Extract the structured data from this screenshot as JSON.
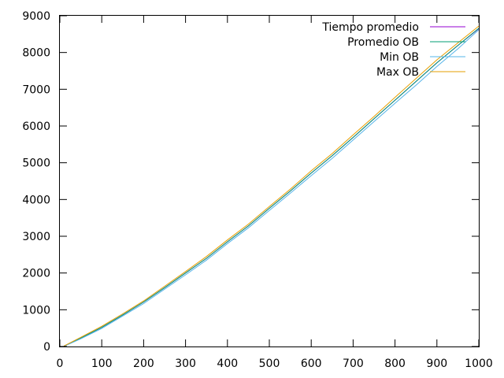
{
  "chart_data": {
    "type": "line",
    "title": "",
    "xlabel": "",
    "ylabel": "",
    "xlim": [
      0,
      1000
    ],
    "ylim": [
      0,
      9000
    ],
    "x_ticks": [
      0,
      100,
      200,
      300,
      400,
      500,
      600,
      700,
      800,
      900,
      1000
    ],
    "y_ticks": [
      0,
      1000,
      2000,
      3000,
      4000,
      5000,
      6000,
      7000,
      8000,
      9000
    ],
    "grid": false,
    "legend_position": "top-right",
    "x": [
      10,
      50,
      100,
      150,
      200,
      250,
      300,
      350,
      400,
      450,
      500,
      550,
      600,
      650,
      700,
      750,
      800,
      850,
      900,
      950,
      1000
    ],
    "series": [
      {
        "name": "Tiempo promedio",
        "color": "#9400d3",
        "values": [
          10,
          230,
          520,
          860,
          1210,
          1600,
          2000,
          2400,
          2850,
          3280,
          3760,
          4230,
          4720,
          5190,
          5690,
          6200,
          6700,
          7210,
          7720,
          8190,
          8650
        ]
      },
      {
        "name": "Promedio OB",
        "color": "#009e73",
        "values": [
          10,
          230,
          520,
          860,
          1210,
          1600,
          2000,
          2400,
          2850,
          3280,
          3760,
          4230,
          4720,
          5190,
          5690,
          6200,
          6700,
          7210,
          7720,
          8190,
          8660
        ]
      },
      {
        "name": "Min OB",
        "color": "#56b4e9",
        "values": [
          5,
          210,
          490,
          830,
          1170,
          1560,
          1950,
          2350,
          2800,
          3230,
          3700,
          4170,
          4650,
          5120,
          5620,
          6120,
          6620,
          7110,
          7620,
          8100,
          8620
        ]
      },
      {
        "name": "Max OB",
        "color": "#e69f00",
        "values": [
          15,
          250,
          550,
          890,
          1240,
          1640,
          2040,
          2450,
          2900,
          3330,
          3810,
          4280,
          4780,
          5250,
          5760,
          6260,
          6780,
          7290,
          7800,
          8260,
          8720
        ]
      }
    ]
  }
}
